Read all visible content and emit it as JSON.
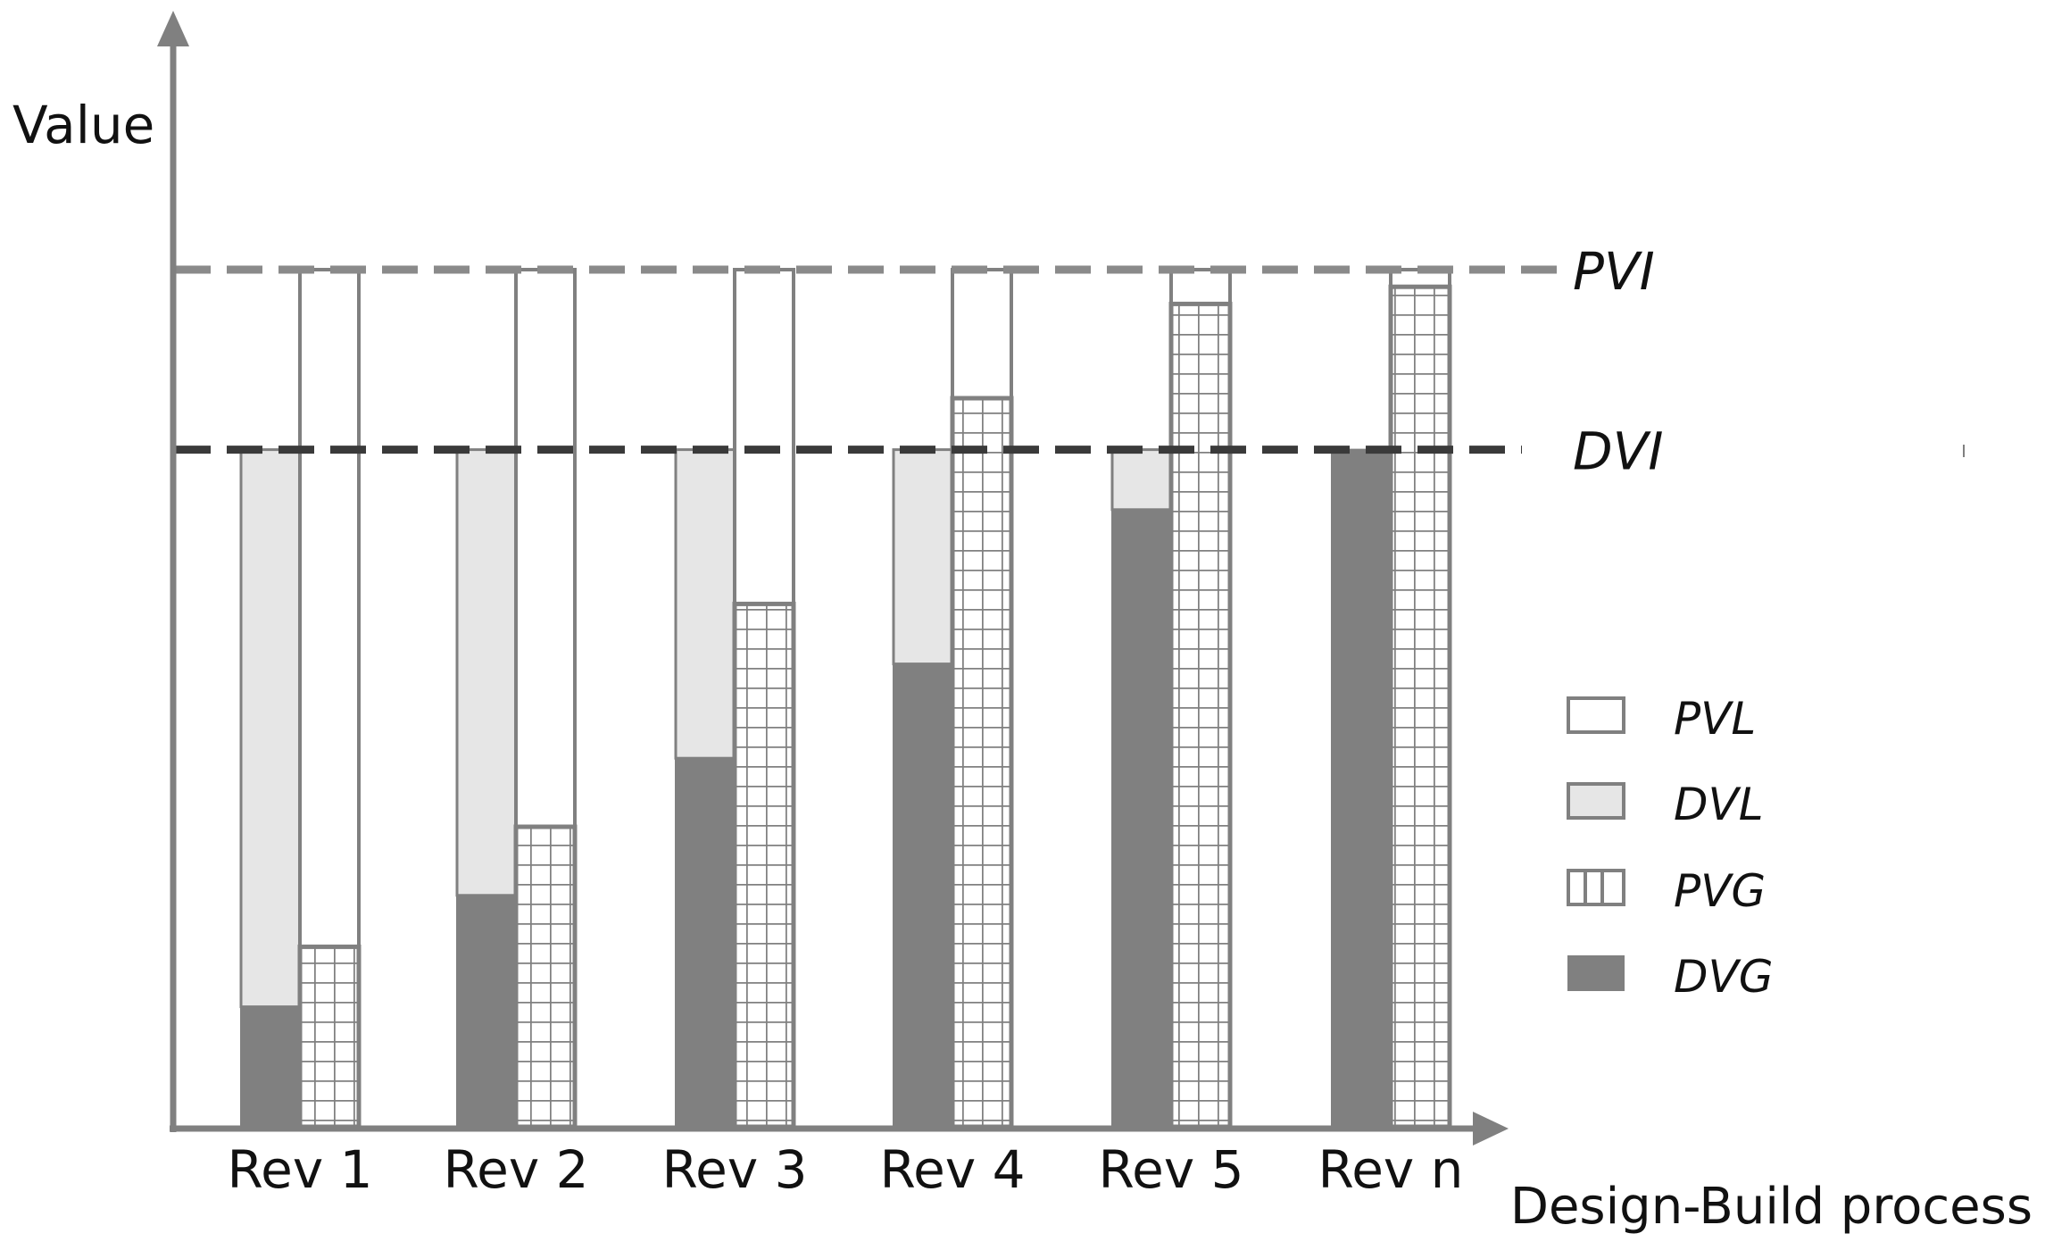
{
  "chart_data": {
    "type": "bar",
    "title": "",
    "ylabel": "Value",
    "xlabel": "Design-Build process",
    "categories": [
      "Rev 1",
      "Rev 2",
      "Rev 3",
      "Rev 4",
      "Rev 5",
      "Rev n"
    ],
    "y_max": 100,
    "reference_lines": [
      {
        "label": "PVI",
        "value": 100,
        "color": "#8a8a8a",
        "style": "dashed"
      },
      {
        "label": "DVI",
        "value": 79,
        "color": "#3a3a3a",
        "style": "dashed"
      }
    ],
    "series": [
      {
        "name": "PVL",
        "values": [
          79,
          65,
          39,
          15,
          4,
          2
        ]
      },
      {
        "name": "DVL",
        "values": [
          65,
          52,
          36,
          25,
          7,
          0
        ]
      },
      {
        "name": "PVG",
        "values": [
          21,
          35,
          61,
          85,
          96,
          98
        ]
      },
      {
        "name": "DVG",
        "values": [
          14,
          27,
          43,
          54,
          72,
          79
        ]
      }
    ],
    "legend": {
      "placement": "right",
      "items": [
        {
          "label": "PVL",
          "pattern": "empty"
        },
        {
          "label": "DVL",
          "pattern": "light"
        },
        {
          "label": "PVG",
          "pattern": "grid"
        },
        {
          "label": "DVG",
          "pattern": "dark"
        }
      ]
    },
    "colors": {
      "axis": "#808080",
      "outline": "#808080",
      "dvl_fill": "#e6e6e6",
      "dvg_fill": "#808080",
      "pvl_fill": "#ffffff",
      "pvg_fill": "#ffffff"
    }
  }
}
